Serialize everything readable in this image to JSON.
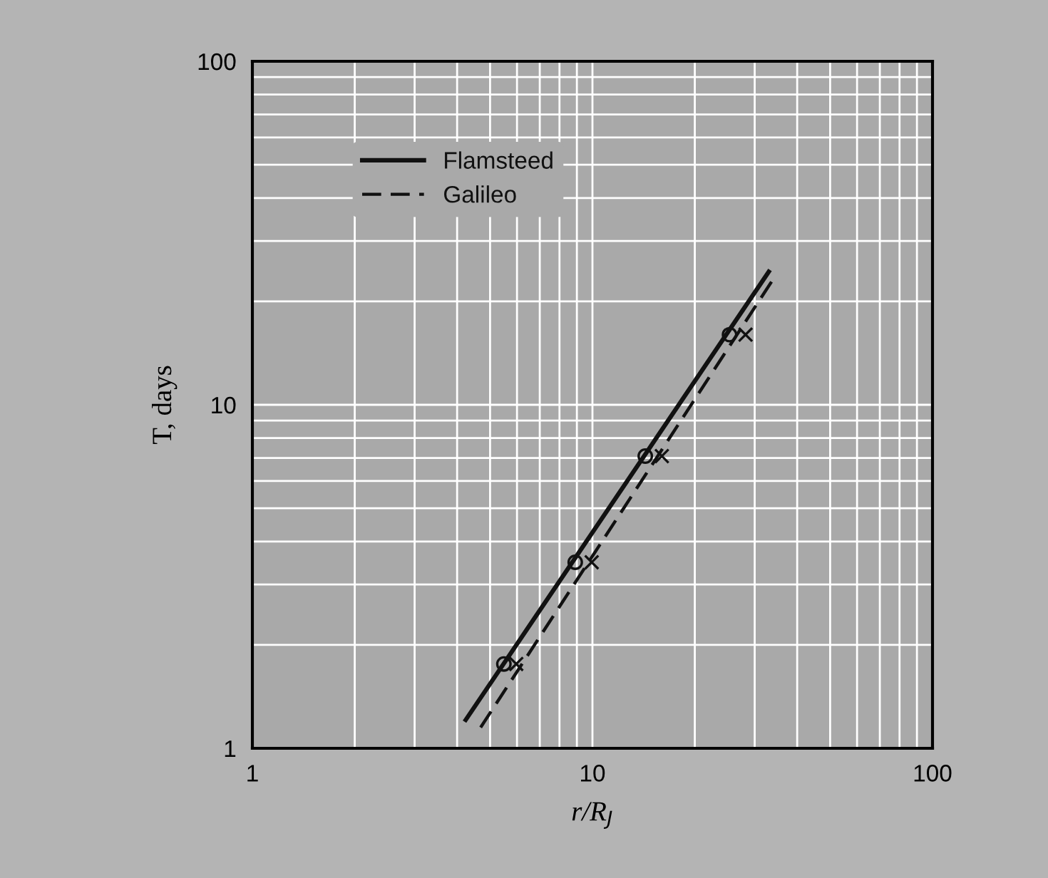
{
  "chart_data": {
    "type": "line",
    "xlabel": "r/R$_{J}$",
    "ylabel": "T, days",
    "log": "xy",
    "xlim": [
      1,
      100
    ],
    "ylim": [
      1,
      100
    ],
    "xticks": [
      1,
      10,
      100
    ],
    "yticks": [
      1,
      10,
      100
    ],
    "tick_labels": "xy",
    "grid": true,
    "legend": "top left",
    "series": [
      {
        "name": "Flamsteed",
        "color": "#111111",
        "line_style": "solid",
        "marker": "none",
        "x": [
          4.24,
          33.0
        ],
        "values": [
          1.21,
          24.4
        ]
      },
      {
        "type": "scatter",
        "color": "#111111",
        "marker": "circle",
        "x": [
          5.49,
          8.9,
          14.3,
          25.3
        ],
        "values": [
          1.76,
          3.48,
          7.09,
          16.0
        ]
      },
      {
        "name": "Galileo",
        "color": "#111111",
        "line_style": "dashed",
        "marker": "none",
        "x": [
          4.69,
          33.8
        ],
        "values": [
          1.15,
          23.0
        ]
      },
      {
        "type": "scatter",
        "color": "#111111",
        "marker": "cross",
        "x": [
          5.97,
          9.95,
          16.0,
          28.2
        ],
        "values": [
          1.76,
          3.48,
          7.09,
          16.0
        ]
      }
    ]
  }
}
